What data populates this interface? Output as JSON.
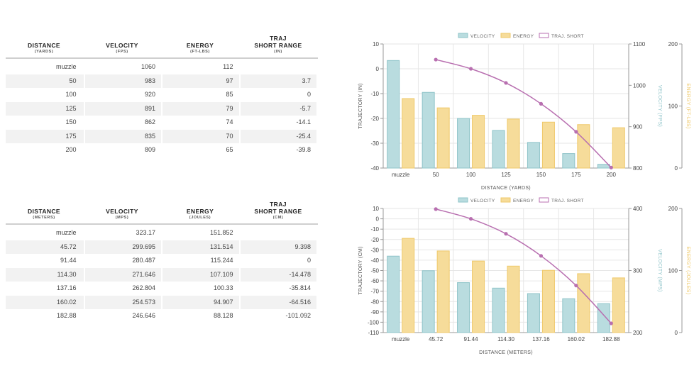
{
  "table_imperial": {
    "headers": [
      {
        "title": "DISTANCE",
        "unit": "(YARDS)"
      },
      {
        "title": "VELOCITY",
        "unit": "(FPS)"
      },
      {
        "title": "ENERGY",
        "unit": "(FT-LBS)"
      },
      {
        "title": "TRAJ\nSHORT RANGE",
        "unit": "(IN)"
      }
    ],
    "rows": [
      [
        "muzzle",
        "1060",
        "112",
        ""
      ],
      [
        "50",
        "983",
        "97",
        "3.7"
      ],
      [
        "100",
        "920",
        "85",
        "0"
      ],
      [
        "125",
        "891",
        "79",
        "-5.7"
      ],
      [
        "150",
        "862",
        "74",
        "-14.1"
      ],
      [
        "175",
        "835",
        "70",
        "-25.4"
      ],
      [
        "200",
        "809",
        "65",
        "-39.8"
      ]
    ]
  },
  "table_metric": {
    "headers": [
      {
        "title": "DISTANCE",
        "unit": "(METERS)"
      },
      {
        "title": "VELOCITY",
        "unit": "(MPS)"
      },
      {
        "title": "ENERGY",
        "unit": "(JOULES)"
      },
      {
        "title": "TRAJ\nSHORT RANGE",
        "unit": "(CM)"
      }
    ],
    "rows": [
      [
        "muzzle",
        "323.17",
        "151.852",
        ""
      ],
      [
        "45.72",
        "299.695",
        "131.514",
        "9.398"
      ],
      [
        "91.44",
        "280.487",
        "115.244",
        "0"
      ],
      [
        "114.30",
        "271.646",
        "107.109",
        "-14.478"
      ],
      [
        "137.16",
        "262.804",
        "100.33",
        "-35.814"
      ],
      [
        "160.02",
        "254.573",
        "94.907",
        "-64.516"
      ],
      [
        "182.88",
        "246.646",
        "88.128",
        "-101.092"
      ]
    ]
  },
  "chart_data": [
    {
      "type": "bar",
      "categories": [
        "muzzle",
        "50",
        "100",
        "125",
        "150",
        "175",
        "200"
      ],
      "xlabel": "DISTANCE (YARDS)",
      "ylabel_left": "TRAJECTORY (IN)",
      "ylabel_right1": "VELOCITY (FPS)",
      "ylabel_right2": "ENERGY (FT-LBS)",
      "legend": [
        "VELOCITY",
        "ENERGY",
        "TRAJ. SHORT"
      ],
      "legend_position": "top",
      "grid": true,
      "traj_range": [
        -40,
        10
      ],
      "traj_ticks": [
        10,
        0,
        -10,
        -20,
        -30,
        -40
      ],
      "vel_range": [
        800,
        1100
      ],
      "vel_ticks": [
        1100,
        1000,
        900,
        800
      ],
      "energy_range": [
        0,
        200
      ],
      "energy_ticks": [
        200,
        100,
        0
      ],
      "series": [
        {
          "name": "VELOCITY",
          "values": [
            1060,
            983,
            920,
            891,
            862,
            835,
            809
          ]
        },
        {
          "name": "ENERGY",
          "values": [
            112,
            97,
            85,
            79,
            74,
            70,
            65
          ]
        },
        {
          "name": "TRAJ. SHORT",
          "values": [
            null,
            3.7,
            0,
            -5.7,
            -14.1,
            -25.4,
            -39.8
          ]
        }
      ]
    },
    {
      "type": "bar",
      "categories": [
        "muzzle",
        "45.72",
        "91.44",
        "114.30",
        "137.16",
        "160.02",
        "182.88"
      ],
      "xlabel": "DISTANCE (METERS)",
      "ylabel_left": "TRAJECTORY (CM)",
      "ylabel_right1": "VELOCITY (MPS)",
      "ylabel_right2": "ENERGY (JOULES)",
      "legend": [
        "VELOCITY",
        "ENERGY",
        "TRAJ. SHORT"
      ],
      "legend_position": "top",
      "grid": true,
      "traj_range": [
        -110,
        10
      ],
      "traj_ticks": [
        10,
        0,
        -10,
        -20,
        -30,
        -40,
        -50,
        -60,
        -70,
        -80,
        -90,
        -100,
        -110
      ],
      "vel_range": [
        200,
        400
      ],
      "vel_ticks": [
        400,
        300,
        200
      ],
      "energy_range": [
        0,
        200
      ],
      "energy_ticks": [
        200,
        100,
        0
      ],
      "series": [
        {
          "name": "VELOCITY",
          "values": [
            323.17,
            299.695,
            280.487,
            271.646,
            262.804,
            254.573,
            246.646
          ]
        },
        {
          "name": "ENERGY",
          "values": [
            151.852,
            131.514,
            115.244,
            107.109,
            100.33,
            94.907,
            88.128
          ]
        },
        {
          "name": "TRAJ. SHORT",
          "values": [
            null,
            9.398,
            0,
            -14.478,
            -35.814,
            -64.516,
            -101.092
          ]
        }
      ]
    }
  ],
  "colors": {
    "velocity_fill": "#b9dcdf",
    "velocity_stroke": "#8fc4c9",
    "energy_fill": "#f6dc9a",
    "energy_stroke": "#efc96a",
    "traj": "#b86fb0",
    "grid": "#e6e6e6",
    "axis_text": "#444444",
    "vel_label": "#8fc4c9",
    "energy_label": "#efc96a"
  }
}
